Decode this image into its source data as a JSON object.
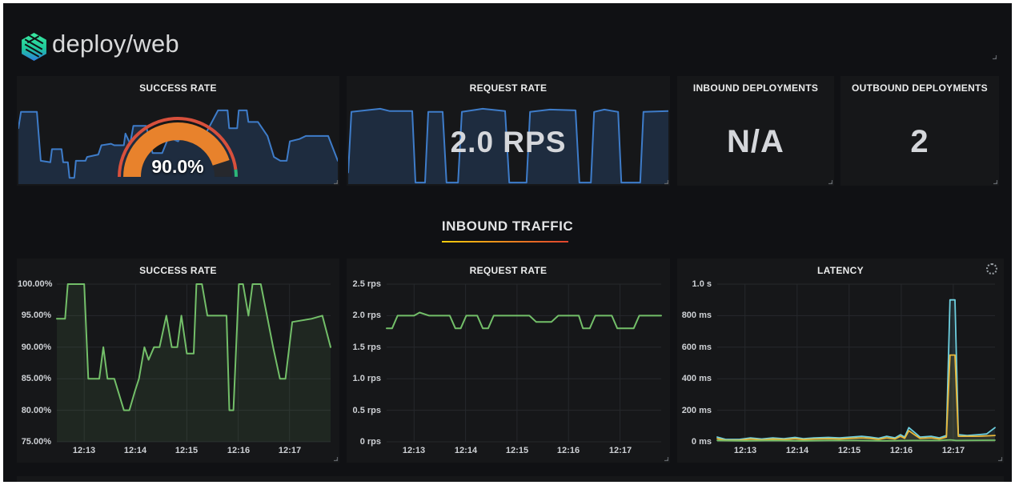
{
  "app": {
    "logo_text": "deploy/web"
  },
  "section_header": {
    "title": "INBOUND TRAFFIC",
    "underline_gradient": [
      "#F2CC0C",
      "#E0432E"
    ]
  },
  "top_row": {
    "success_rate": {
      "title": "SUCCESS RATE",
      "gauge": {
        "display": "90.0%",
        "value": 90,
        "max": 100,
        "bar_color": "#E8822C",
        "rest_color": "#26282D",
        "ring": [
          {
            "to": 96,
            "color": "#D8503C"
          },
          {
            "to": 100,
            "color": "#2DB879"
          }
        ]
      }
    },
    "request_rate": {
      "title": "REQUEST RATE",
      "value": "2.0 RPS"
    },
    "inbound_deployments": {
      "title": "INBOUND DEPLOYMENTS",
      "value": "N/A"
    },
    "outbound_deployments": {
      "title": "OUTBOUND DEPLOYMENTS",
      "value": "2"
    }
  },
  "chart_data": [
    {
      "type": "area",
      "title": "SUCCESS RATE",
      "role": "stat-sparkline",
      "axes": false,
      "ylim": [
        0,
        1
      ],
      "grid": false,
      "legend": "none",
      "series": [
        {
          "name": "success-rate-sparkline",
          "color": "#3E7CC9",
          "fill": "rgba(61,121,200,0.22)",
          "width": 2,
          "points": [
            [
              0,
              0.72
            ],
            [
              0.008,
              0.93
            ],
            [
              0.058,
              0.93
            ],
            [
              0.07,
              0.3
            ],
            [
              0.1,
              0.28
            ],
            [
              0.105,
              0.45
            ],
            [
              0.135,
              0.45
            ],
            [
              0.14,
              0.28
            ],
            [
              0.155,
              0.28
            ],
            [
              0.16,
              0.08
            ],
            [
              0.175,
              0.08
            ],
            [
              0.18,
              0.3
            ],
            [
              0.21,
              0.3
            ],
            [
              0.215,
              0.35
            ],
            [
              0.25,
              0.38
            ],
            [
              0.26,
              0.5
            ],
            [
              0.29,
              0.52
            ],
            [
              0.3,
              0.5
            ],
            [
              0.33,
              0.5
            ],
            [
              0.335,
              0.65
            ],
            [
              0.35,
              0.52
            ],
            [
              0.36,
              0.75
            ],
            [
              0.4,
              0.75
            ],
            [
              0.42,
              0.4
            ],
            [
              0.45,
              0.4
            ],
            [
              0.47,
              0.6
            ],
            [
              0.5,
              0.55
            ],
            [
              0.53,
              0.75
            ],
            [
              0.56,
              0.6
            ],
            [
              0.58,
              0.6
            ],
            [
              0.625,
              0.95
            ],
            [
              0.655,
              0.95
            ],
            [
              0.66,
              0.72
            ],
            [
              0.685,
              0.72
            ],
            [
              0.69,
              0.95
            ],
            [
              0.715,
              0.95
            ],
            [
              0.72,
              0.8
            ],
            [
              0.75,
              0.8
            ],
            [
              0.78,
              0.62
            ],
            [
              0.8,
              0.35
            ],
            [
              0.82,
              0.3
            ],
            [
              0.84,
              0.3
            ],
            [
              0.85,
              0.55
            ],
            [
              0.88,
              0.58
            ],
            [
              0.9,
              0.62
            ],
            [
              0.97,
              0.62
            ],
            [
              1,
              0.3
            ]
          ]
        }
      ]
    },
    {
      "type": "area",
      "title": "REQUEST RATE",
      "role": "stat-sparkline",
      "axes": false,
      "ylim": [
        0,
        1
      ],
      "grid": false,
      "legend": "none",
      "series": [
        {
          "name": "request-rate-sparkline",
          "color": "#3E7CC9",
          "fill": "rgba(61,121,200,0.22)",
          "width": 2,
          "points": [
            [
              0,
              0.15
            ],
            [
              0.01,
              0.93
            ],
            [
              0.1,
              0.97
            ],
            [
              0.13,
              0.94
            ],
            [
              0.2,
              0.94
            ],
            [
              0.21,
              0.02
            ],
            [
              0.24,
              0.02
            ],
            [
              0.25,
              0.93
            ],
            [
              0.295,
              0.93
            ],
            [
              0.307,
              0.02
            ],
            [
              0.343,
              0.02
            ],
            [
              0.355,
              0.93
            ],
            [
              0.42,
              0.97
            ],
            [
              0.49,
              0.94
            ],
            [
              0.503,
              0.02
            ],
            [
              0.557,
              0.02
            ],
            [
              0.568,
              0.93
            ],
            [
              0.63,
              0.96
            ],
            [
              0.71,
              0.95
            ],
            [
              0.722,
              0.02
            ],
            [
              0.758,
              0.02
            ],
            [
              0.768,
              0.93
            ],
            [
              0.8,
              0.96
            ],
            [
              0.843,
              0.93
            ],
            [
              0.853,
              0.02
            ],
            [
              0.912,
              0.02
            ],
            [
              0.922,
              0.93
            ],
            [
              1,
              0.94
            ]
          ]
        }
      ]
    },
    {
      "type": "line",
      "title": "SUCCESS RATE",
      "axes": true,
      "grid": true,
      "legend": "none",
      "xlabel": "",
      "ylabel": "",
      "ylim": [
        75,
        100
      ],
      "y_ticks": {
        "labels": [
          "100.00%",
          "95.00%",
          "90.00%",
          "85.00%",
          "80.00%",
          "75.00%"
        ],
        "values": [
          100,
          95,
          90,
          85,
          80,
          75
        ]
      },
      "x_ticks": {
        "labels": [
          "12:13",
          "12:14",
          "12:15",
          "12:16",
          "12:17"
        ],
        "fracs": [
          0.1,
          0.2875,
          0.475,
          0.6625,
          0.85
        ]
      },
      "series": [
        {
          "name": "success-rate",
          "color": "#73BF69",
          "fill": "rgba(115,191,105,0.1)",
          "width": 2,
          "points": [
            [
              0,
              94.5
            ],
            [
              0.03,
              94.5
            ],
            [
              0.04,
              100
            ],
            [
              0.1,
              100
            ],
            [
              0.115,
              85
            ],
            [
              0.155,
              85
            ],
            [
              0.17,
              90
            ],
            [
              0.185,
              85
            ],
            [
              0.21,
              85
            ],
            [
              0.245,
              80
            ],
            [
              0.265,
              80
            ],
            [
              0.285,
              83
            ],
            [
              0.3,
              85
            ],
            [
              0.32,
              90
            ],
            [
              0.335,
              88
            ],
            [
              0.355,
              90
            ],
            [
              0.375,
              90
            ],
            [
              0.4,
              95
            ],
            [
              0.42,
              90
            ],
            [
              0.44,
              90
            ],
            [
              0.455,
              95
            ],
            [
              0.475,
              89
            ],
            [
              0.5,
              89
            ],
            [
              0.51,
              100
            ],
            [
              0.53,
              100
            ],
            [
              0.55,
              95
            ],
            [
              0.62,
              95
            ],
            [
              0.63,
              80
            ],
            [
              0.645,
              80
            ],
            [
              0.665,
              100
            ],
            [
              0.68,
              100
            ],
            [
              0.7,
              95
            ],
            [
              0.715,
              100
            ],
            [
              0.745,
              100
            ],
            [
              0.77,
              94.5
            ],
            [
              0.79,
              90
            ],
            [
              0.815,
              85
            ],
            [
              0.835,
              85
            ],
            [
              0.86,
              94
            ],
            [
              0.93,
              94.5
            ],
            [
              0.97,
              95
            ],
            [
              1,
              90
            ]
          ]
        }
      ]
    },
    {
      "type": "line",
      "title": "REQUEST RATE",
      "axes": true,
      "grid": true,
      "legend": "none",
      "xlabel": "",
      "ylabel": "",
      "ylim": [
        0,
        2.5
      ],
      "y_ticks": {
        "labels": [
          "2.5 rps",
          "2.0 rps",
          "1.5 rps",
          "1.0 rps",
          "0.5 rps",
          "0 rps"
        ],
        "values": [
          2.5,
          2,
          1.5,
          1,
          0.5,
          0
        ]
      },
      "x_ticks": {
        "labels": [
          "12:13",
          "12:14",
          "12:15",
          "12:16",
          "12:17"
        ],
        "fracs": [
          0.1,
          0.2875,
          0.475,
          0.6625,
          0.85
        ]
      },
      "series": [
        {
          "name": "request-rate",
          "color": "#73BF69",
          "width": 2,
          "points": [
            [
              0,
              1.8
            ],
            [
              0.02,
              1.8
            ],
            [
              0.04,
              2
            ],
            [
              0.1,
              2
            ],
            [
              0.12,
              2.05
            ],
            [
              0.155,
              2
            ],
            [
              0.23,
              2
            ],
            [
              0.25,
              1.8
            ],
            [
              0.27,
              1.8
            ],
            [
              0.29,
              2
            ],
            [
              0.33,
              2
            ],
            [
              0.35,
              1.8
            ],
            [
              0.37,
              1.8
            ],
            [
              0.39,
              2
            ],
            [
              0.52,
              2
            ],
            [
              0.545,
              1.9
            ],
            [
              0.6,
              1.9
            ],
            [
              0.625,
              2
            ],
            [
              0.7,
              2
            ],
            [
              0.715,
              1.8
            ],
            [
              0.74,
              1.8
            ],
            [
              0.76,
              2
            ],
            [
              0.82,
              2
            ],
            [
              0.84,
              1.8
            ],
            [
              0.88,
              1.8
            ],
            [
              0.9,
              1.8
            ],
            [
              0.92,
              2
            ],
            [
              1,
              2
            ]
          ]
        }
      ]
    },
    {
      "type": "line",
      "title": "LATENCY",
      "axes": true,
      "grid": true,
      "legend": "none",
      "xlabel": "",
      "ylabel": "",
      "ylim": [
        0,
        1000
      ],
      "y_ticks": {
        "labels": [
          "1.0 s",
          "800 ms",
          "600 ms",
          "400 ms",
          "200 ms",
          "0 ms"
        ],
        "values": [
          1000,
          800,
          600,
          400,
          200,
          0
        ]
      },
      "x_ticks": {
        "labels": [
          "12:13",
          "12:14",
          "12:15",
          "12:16",
          "12:17"
        ],
        "fracs": [
          0.1,
          0.2875,
          0.475,
          0.6625,
          0.85
        ]
      },
      "series": [
        {
          "name": "latency-upper",
          "color": "#6ED0E0",
          "fill": "rgba(110,208,224,0.1)",
          "width": 1.8,
          "points": [
            [
              0,
              30
            ],
            [
              0.03,
              15
            ],
            [
              0.08,
              15
            ],
            [
              0.12,
              25
            ],
            [
              0.16,
              18
            ],
            [
              0.2,
              25
            ],
            [
              0.24,
              20
            ],
            [
              0.28,
              28
            ],
            [
              0.31,
              20
            ],
            [
              0.35,
              25
            ],
            [
              0.4,
              28
            ],
            [
              0.44,
              25
            ],
            [
              0.48,
              30
            ],
            [
              0.52,
              35
            ],
            [
              0.55,
              30
            ],
            [
              0.58,
              22
            ],
            [
              0.61,
              35
            ],
            [
              0.64,
              25
            ],
            [
              0.66,
              45
            ],
            [
              0.675,
              30
            ],
            [
              0.69,
              90
            ],
            [
              0.71,
              60
            ],
            [
              0.73,
              30
            ],
            [
              0.77,
              35
            ],
            [
              0.8,
              25
            ],
            [
              0.825,
              40
            ],
            [
              0.838,
              900
            ],
            [
              0.856,
              900
            ],
            [
              0.868,
              45
            ],
            [
              0.9,
              40
            ],
            [
              0.94,
              45
            ],
            [
              0.97,
              50
            ],
            [
              1,
              90
            ]
          ]
        },
        {
          "name": "latency-mid",
          "color": "#EAB839",
          "fill": "rgba(234,184,57,0.1)",
          "width": 1.8,
          "points": [
            [
              0,
              20
            ],
            [
              0.03,
              10
            ],
            [
              0.08,
              10
            ],
            [
              0.12,
              18
            ],
            [
              0.16,
              12
            ],
            [
              0.2,
              18
            ],
            [
              0.24,
              14
            ],
            [
              0.28,
              20
            ],
            [
              0.31,
              14
            ],
            [
              0.35,
              18
            ],
            [
              0.4,
              20
            ],
            [
              0.44,
              18
            ],
            [
              0.48,
              22
            ],
            [
              0.52,
              25
            ],
            [
              0.55,
              22
            ],
            [
              0.58,
              15
            ],
            [
              0.61,
              25
            ],
            [
              0.64,
              18
            ],
            [
              0.66,
              35
            ],
            [
              0.675,
              22
            ],
            [
              0.69,
              70
            ],
            [
              0.71,
              45
            ],
            [
              0.73,
              22
            ],
            [
              0.77,
              25
            ],
            [
              0.8,
              18
            ],
            [
              0.825,
              30
            ],
            [
              0.838,
              550
            ],
            [
              0.856,
              550
            ],
            [
              0.868,
              35
            ],
            [
              0.9,
              35
            ],
            [
              0.94,
              35
            ],
            [
              1,
              40
            ]
          ]
        },
        {
          "name": "latency-lower",
          "color": "#73BF69",
          "fill": "rgba(115,191,105,0.08)",
          "width": 1.8,
          "points": [
            [
              0,
              8
            ],
            [
              0.1,
              6
            ],
            [
              0.2,
              8
            ],
            [
              0.3,
              6
            ],
            [
              0.4,
              8
            ],
            [
              0.5,
              8
            ],
            [
              0.6,
              6
            ],
            [
              0.7,
              8
            ],
            [
              0.8,
              8
            ],
            [
              0.84,
              12
            ],
            [
              0.86,
              8
            ],
            [
              1,
              10
            ]
          ]
        }
      ]
    }
  ]
}
